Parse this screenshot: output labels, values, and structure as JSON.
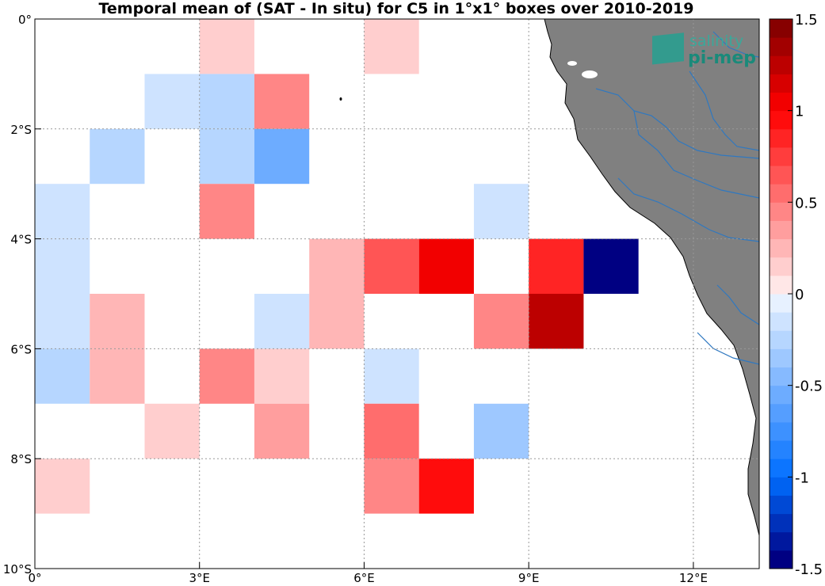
{
  "title": "Temporal mean of (SAT - In situ) for C5 in 1°x1° boxes over 2010-2019",
  "logo": {
    "line1": "salinity",
    "line2": "pi-mep"
  },
  "map": {
    "lon_range": [
      0,
      13.2
    ],
    "lat_range": [
      -10,
      0
    ],
    "land_color": "#808080",
    "river_color": "#2f78c0",
    "grid": "dotted"
  },
  "axes": {
    "x_ticks": [
      {
        "value": 0,
        "label": "0°"
      },
      {
        "value": 3,
        "label": "3°E"
      },
      {
        "value": 6,
        "label": "6°E"
      },
      {
        "value": 9,
        "label": "9°E"
      },
      {
        "value": 12,
        "label": "12°E"
      }
    ],
    "y_ticks": [
      {
        "value": 0,
        "label": "0°"
      },
      {
        "value": -2,
        "label": "2°S"
      },
      {
        "value": -4,
        "label": "4°S"
      },
      {
        "value": -6,
        "label": "6°S"
      },
      {
        "value": -8,
        "label": "8°S"
      },
      {
        "value": -10,
        "label": "10°S"
      }
    ]
  },
  "colorbar": {
    "min": -1.5,
    "max": 1.5,
    "levels": 30,
    "ticks": [
      {
        "value": 1.5,
        "label": "1.5"
      },
      {
        "value": 1,
        "label": "1"
      },
      {
        "value": 0.5,
        "label": "0.5"
      },
      {
        "value": 0,
        "label": "0"
      },
      {
        "value": -0.5,
        "label": "-0.5"
      },
      {
        "value": -1,
        "label": "-1"
      },
      {
        "value": -1.5,
        "label": "-1.5"
      }
    ]
  },
  "chart_data": {
    "type": "heatmap",
    "title": "Temporal mean of (SAT - In situ) for C5 in 1°x1° boxes over 2010-2019",
    "cell_size_deg": 1,
    "cells": [
      {
        "lon": 3,
        "lat": 0,
        "value": 0.15
      },
      {
        "lon": 6,
        "lat": 0,
        "value": 0.15
      },
      {
        "lon": 2,
        "lat": -1,
        "value": -0.15
      },
      {
        "lon": 3,
        "lat": -1,
        "value": -0.25
      },
      {
        "lon": 4,
        "lat": -1,
        "value": 0.45
      },
      {
        "lon": 1,
        "lat": -2,
        "value": -0.25
      },
      {
        "lon": 3,
        "lat": -2,
        "value": -0.25
      },
      {
        "lon": 4,
        "lat": -2,
        "value": -0.55
      },
      {
        "lon": 0,
        "lat": -3,
        "value": -0.15
      },
      {
        "lon": 3,
        "lat": -3,
        "value": 0.45
      },
      {
        "lon": 8,
        "lat": -3,
        "value": -0.15
      },
      {
        "lon": 0,
        "lat": -4,
        "value": -0.15
      },
      {
        "lon": 5,
        "lat": -4,
        "value": 0.25
      },
      {
        "lon": 6,
        "lat": -4,
        "value": 0.65
      },
      {
        "lon": 7,
        "lat": -4,
        "value": 1.05
      },
      {
        "lon": 9,
        "lat": -4,
        "value": 0.85
      },
      {
        "lon": 10,
        "lat": -4,
        "value": -1.45
      },
      {
        "lon": 0,
        "lat": -5,
        "value": -0.15
      },
      {
        "lon": 1,
        "lat": -5,
        "value": 0.25
      },
      {
        "lon": 4,
        "lat": -5,
        "value": -0.15
      },
      {
        "lon": 5,
        "lat": -5,
        "value": 0.25
      },
      {
        "lon": 8,
        "lat": -5,
        "value": 0.45
      },
      {
        "lon": 9,
        "lat": -5,
        "value": 1.25
      },
      {
        "lon": 0,
        "lat": -6,
        "value": -0.25
      },
      {
        "lon": 1,
        "lat": -6,
        "value": 0.25
      },
      {
        "lon": 3,
        "lat": -6,
        "value": 0.45
      },
      {
        "lon": 4,
        "lat": -6,
        "value": 0.15
      },
      {
        "lon": 6,
        "lat": -6,
        "value": -0.15
      },
      {
        "lon": 2,
        "lat": -7,
        "value": 0.15
      },
      {
        "lon": 4,
        "lat": -7,
        "value": 0.35
      },
      {
        "lon": 6,
        "lat": -7,
        "value": 0.55
      },
      {
        "lon": 8,
        "lat": -7,
        "value": -0.35
      },
      {
        "lon": 0,
        "lat": -8,
        "value": 0.15
      },
      {
        "lon": 6,
        "lat": -8,
        "value": 0.45
      },
      {
        "lon": 7,
        "lat": -8,
        "value": 0.95
      }
    ]
  }
}
